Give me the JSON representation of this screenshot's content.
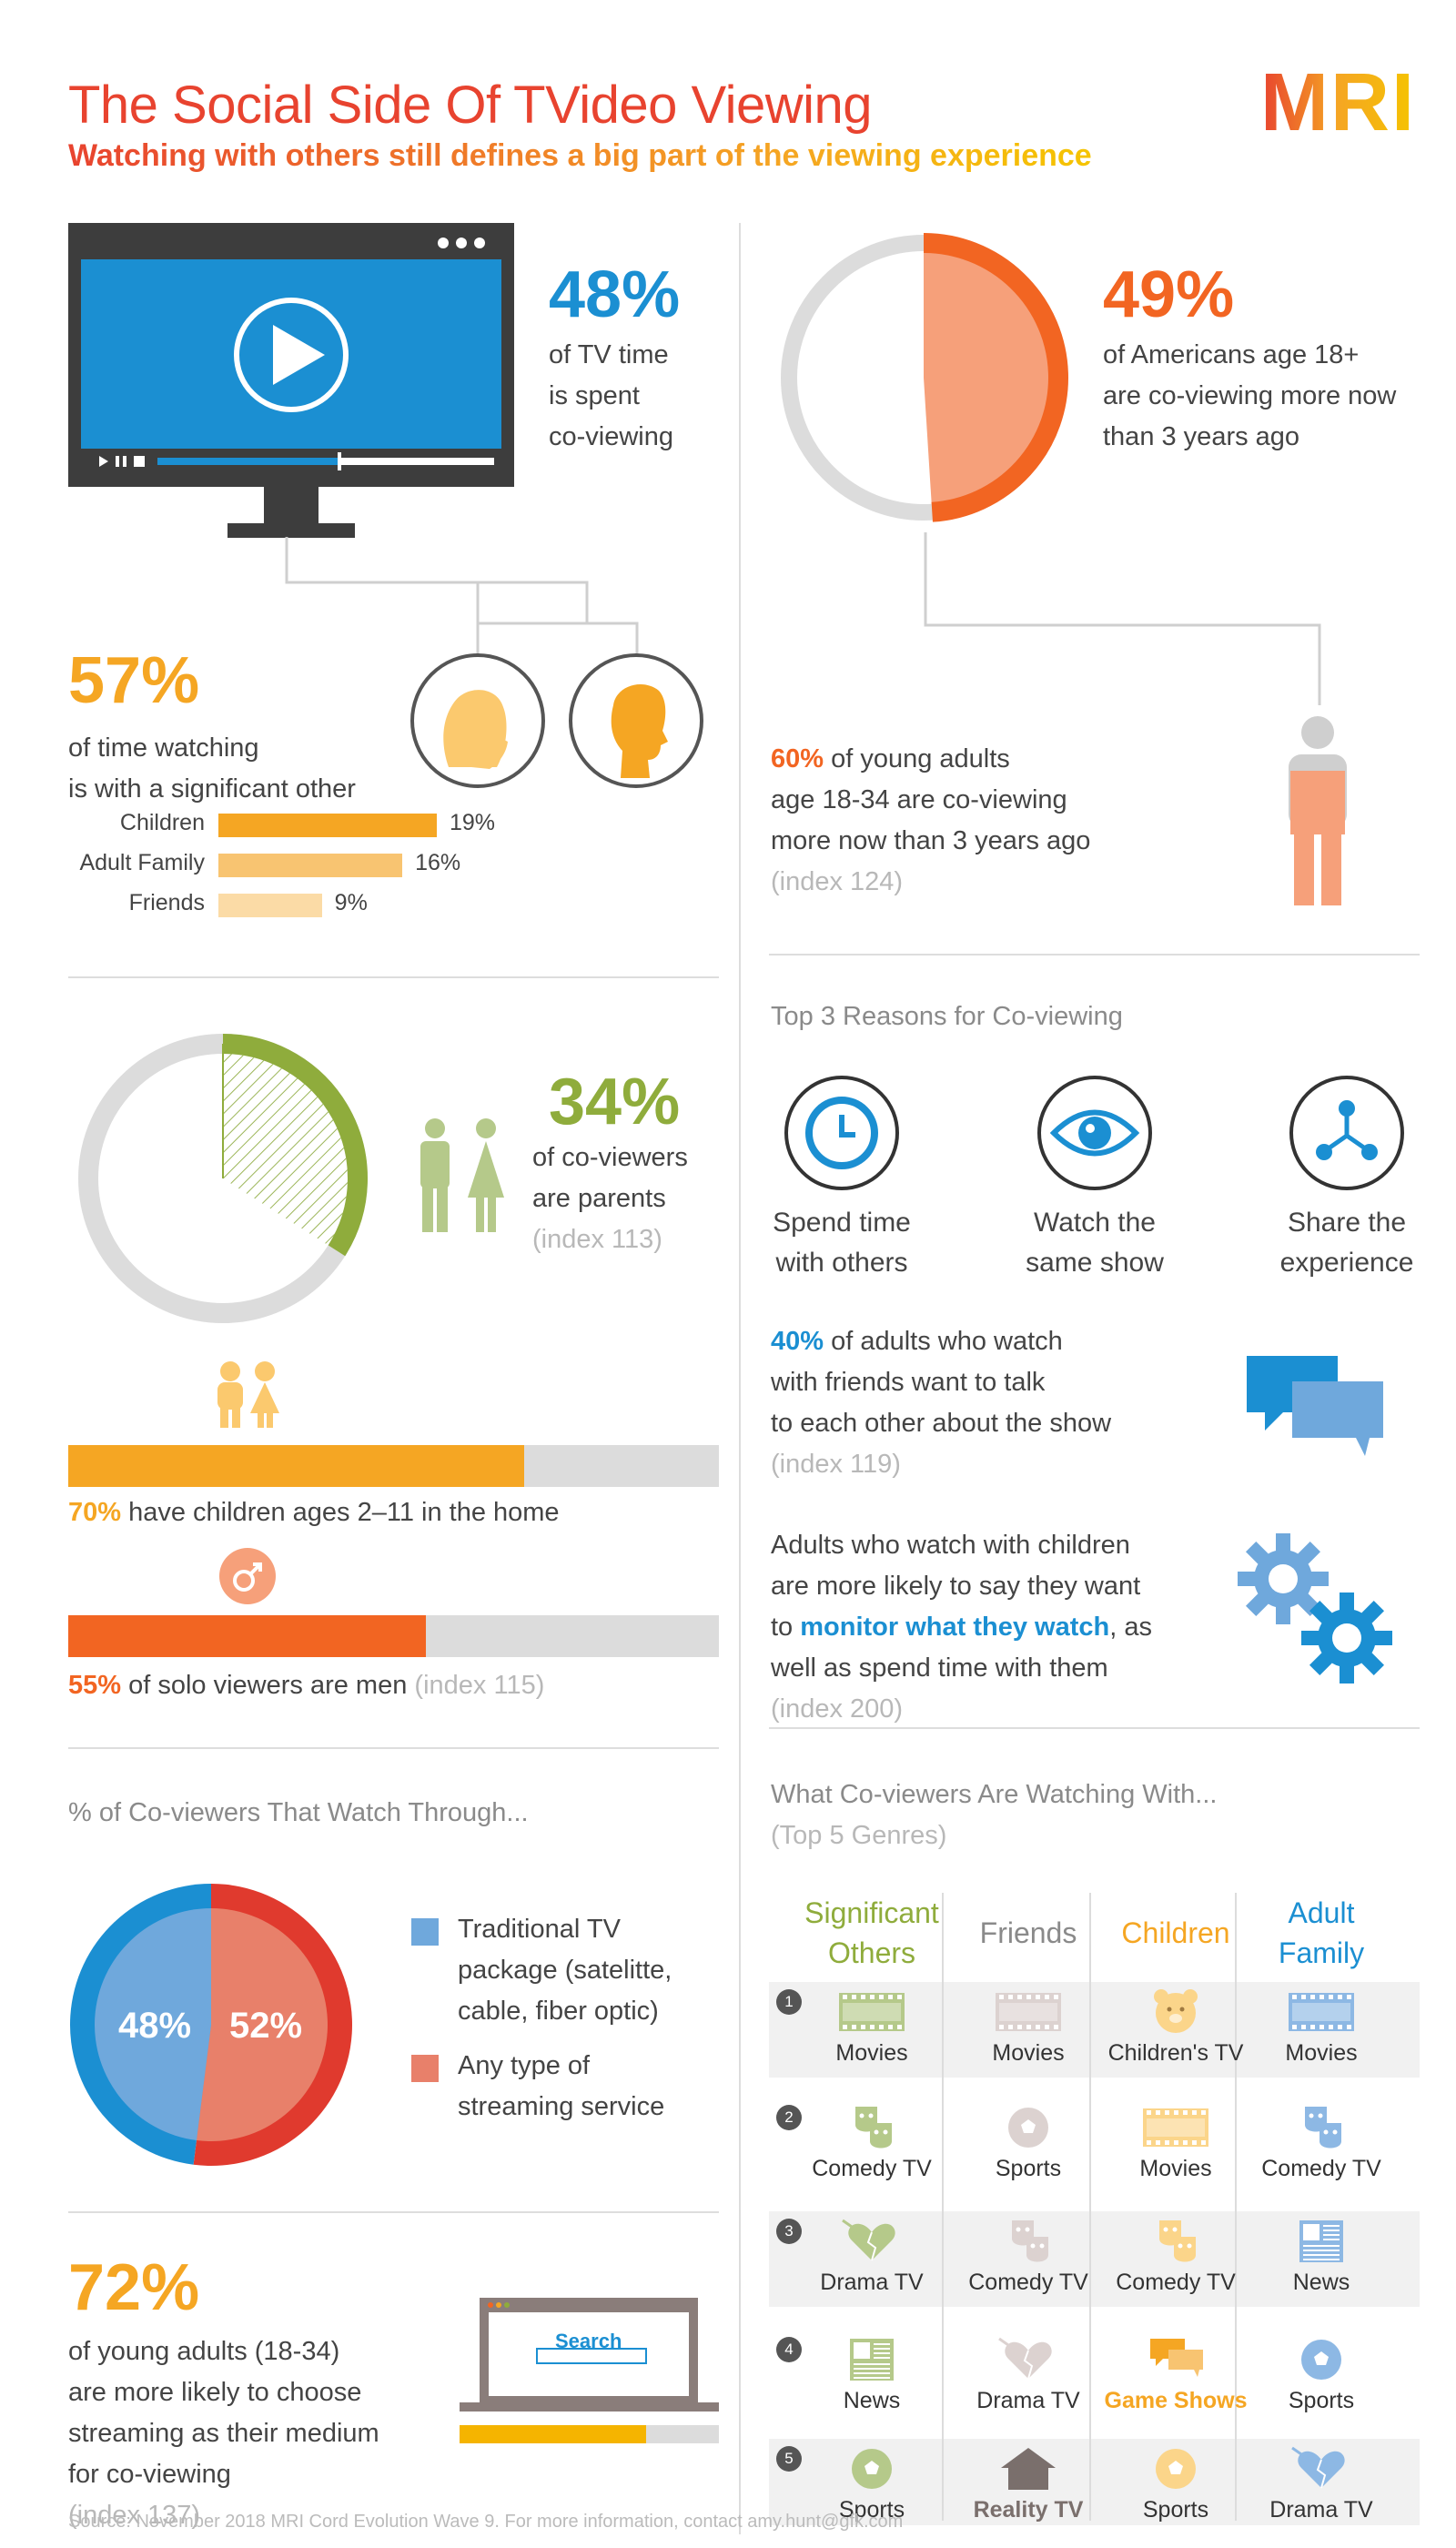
{
  "header": {
    "title": "The Social Side Of TVideo Viewing",
    "subtitle": "Watching with others still defines a big part of the viewing experience",
    "logo": "MRI"
  },
  "colors": {
    "red": "#e8432f",
    "orange": "#f26522",
    "gold": "#f5a623",
    "blue": "#1b8fd2",
    "green": "#8fac3c",
    "grey": "#dcdcdc"
  },
  "tv_time": {
    "value": "48%",
    "text": "of TV time is spent co-viewing",
    "lines": [
      "of TV time",
      "is spent",
      "co-viewing"
    ]
  },
  "americans": {
    "value": "49%",
    "lines": [
      "of Americans age 18+",
      "are co-viewing more now",
      "than 3 years ago"
    ],
    "fraction": 0.49
  },
  "significant_other": {
    "value": "57%",
    "lines": [
      "of time watching",
      "is with a significant other"
    ],
    "bars": [
      {
        "label": "Children",
        "value": 19,
        "display": "19%",
        "color": "#f5a623"
      },
      {
        "label": "Adult Family",
        "value": 16,
        "display": "16%",
        "color": "#f8c471"
      },
      {
        "label": "Friends",
        "value": 9,
        "display": "9%",
        "color": "#fbdba6"
      }
    ]
  },
  "young_adults": {
    "value": "60%",
    "rest": " of young adults",
    "lines": [
      "age 18-34 are co-viewing",
      "more now than 3 years ago"
    ],
    "index": "(index 124)"
  },
  "parents": {
    "value": "34%",
    "lines": [
      "of co-viewers",
      "are parents"
    ],
    "index": "(index 113)",
    "fraction": 0.34
  },
  "children_home": {
    "value": "70%",
    "text": " have children ages 2–11 in the home",
    "fraction": 0.7
  },
  "solo_men": {
    "value": "55%",
    "text": " of solo viewers are men",
    "index": "(index 115)",
    "fraction": 0.55
  },
  "watch_through": {
    "title": "% of Co-viewers That Watch Through...",
    "traditional": {
      "value": "48%",
      "lines": [
        "Traditional TV",
        "package (satelitte,",
        "cable, fiber optic)"
      ],
      "color": "#6fa8dc",
      "fraction": 0.48
    },
    "streaming": {
      "value": "52%",
      "lines": [
        "Any type of",
        "streaming service"
      ],
      "color": "#e8806a",
      "fraction": 0.52
    }
  },
  "streaming_medium": {
    "value": "72%",
    "lines": [
      "of young adults (18-34)",
      "are more likely to choose",
      "streaming as their medium",
      "for co-viewing"
    ],
    "index": "(index 137)",
    "search_label": "Search",
    "fraction": 0.72
  },
  "reasons": {
    "title": "Top 3 Reasons for Co-viewing",
    "items": [
      {
        "icon": "clock-icon",
        "lines": [
          "Spend time",
          "with others"
        ]
      },
      {
        "icon": "eye-icon",
        "lines": [
          "Watch the",
          "same show"
        ]
      },
      {
        "icon": "share-icon",
        "lines": [
          "Share the",
          "experience"
        ]
      }
    ]
  },
  "talk": {
    "value": "40%",
    "rest": " of adults who watch",
    "lines": [
      "with friends want to talk",
      "to each other about the show"
    ],
    "index": "(index 119)"
  },
  "monitor": {
    "line1": "Adults who watch with children",
    "line2": "are more likely to say they want",
    "line3_pre": "to ",
    "line3_highlight": "monitor what they watch",
    "line3_post": ", as",
    "line4": "well as spend time with them",
    "index": "(index 200)"
  },
  "genres": {
    "title": "What Co-viewers Are Watching With...",
    "subtitle": "(Top 5 Genres)",
    "columns": [
      {
        "lines": [
          "Significant",
          "Others"
        ],
        "color": "#8fac3c"
      },
      {
        "lines": [
          "Friends"
        ],
        "color": "#8a8a8a"
      },
      {
        "lines": [
          "Children"
        ],
        "color": "#f5a623"
      },
      {
        "lines": [
          "Adult",
          "Family"
        ],
        "color": "#1b8fd2"
      }
    ],
    "rows": [
      {
        "rank": "1",
        "cells": [
          {
            "label": "Movies",
            "icon": "film-icon"
          },
          {
            "label": "Movies",
            "icon": "film-icon"
          },
          {
            "label": "Children's TV",
            "icon": "bear-icon"
          },
          {
            "label": "Movies",
            "icon": "film-icon"
          }
        ]
      },
      {
        "rank": "2",
        "cells": [
          {
            "label": "Comedy TV",
            "icon": "masks-icon"
          },
          {
            "label": "Sports",
            "icon": "ball-icon"
          },
          {
            "label": "Movies",
            "icon": "film-icon"
          },
          {
            "label": "Comedy TV",
            "icon": "masks-icon"
          }
        ]
      },
      {
        "rank": "3",
        "cells": [
          {
            "label": "Drama TV",
            "icon": "broken-heart-icon"
          },
          {
            "label": "Comedy TV",
            "icon": "masks-icon"
          },
          {
            "label": "Comedy TV",
            "icon": "masks-icon"
          },
          {
            "label": "News",
            "icon": "newspaper-icon"
          }
        ]
      },
      {
        "rank": "4",
        "cells": [
          {
            "label": "News",
            "icon": "newspaper-icon"
          },
          {
            "label": "Drama TV",
            "icon": "broken-heart-icon"
          },
          {
            "label": "Game Shows",
            "icon": "chat-icon"
          },
          {
            "label": "Sports",
            "icon": "ball-icon"
          }
        ]
      },
      {
        "rank": "5",
        "cells": [
          {
            "label": "Sports",
            "icon": "ball-icon"
          },
          {
            "label": "Reality TV",
            "icon": "house-icon"
          },
          {
            "label": "Sports",
            "icon": "ball-icon"
          },
          {
            "label": "Drama TV",
            "icon": "broken-heart-icon"
          }
        ]
      }
    ]
  },
  "footer": {
    "source": "Source: November 2018 MRI Cord Evolution Wave 9. For more information, contact amy.hunt@gfk.com"
  }
}
